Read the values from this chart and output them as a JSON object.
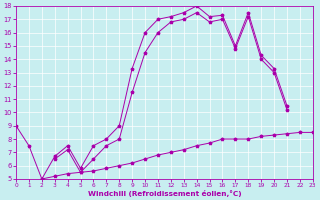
{
  "xlabel": "Windchill (Refroidissement éolien,°C)",
  "bg_color": "#c8eef0",
  "line_color": "#aa00aa",
  "xlim": [
    0,
    23
  ],
  "ylim": [
    5,
    18
  ],
  "xticks": [
    0,
    1,
    2,
    3,
    4,
    5,
    6,
    7,
    8,
    9,
    10,
    11,
    12,
    13,
    14,
    15,
    16,
    17,
    18,
    19,
    20,
    21,
    22,
    23
  ],
  "yticks": [
    5,
    6,
    7,
    8,
    9,
    10,
    11,
    12,
    13,
    14,
    15,
    16,
    17,
    18
  ],
  "line1_x": [
    0,
    1,
    2,
    3,
    4,
    5,
    6,
    7,
    8,
    9,
    10,
    11,
    12,
    13,
    14,
    15,
    16,
    17,
    18,
    19,
    20,
    21
  ],
  "line1_y": [
    9.0,
    7.5,
    5.0,
    6.7,
    7.5,
    5.8,
    7.5,
    8.0,
    9.0,
    13.3,
    16.0,
    17.0,
    17.2,
    17.5,
    18.0,
    17.2,
    17.3,
    15.0,
    17.5,
    14.3,
    13.3,
    10.5
  ],
  "line2_x": [
    3,
    4,
    5,
    6,
    7,
    8,
    9,
    10,
    11,
    12,
    13,
    14,
    15,
    16,
    17,
    18,
    19,
    20,
    21
  ],
  "line2_y": [
    6.5,
    7.2,
    5.5,
    6.5,
    7.5,
    8.0,
    11.5,
    14.5,
    16.0,
    16.8,
    17.0,
    17.5,
    16.8,
    17.0,
    14.8,
    17.2,
    14.0,
    13.0,
    10.2
  ],
  "line3_x": [
    2,
    3,
    4,
    5,
    6,
    7,
    8,
    9,
    10,
    11,
    12,
    13,
    14,
    15,
    16,
    17,
    18,
    19,
    20,
    21,
    22,
    23
  ],
  "line3_y": [
    5.0,
    5.2,
    5.4,
    5.5,
    5.6,
    5.8,
    6.0,
    6.2,
    6.5,
    6.8,
    7.0,
    7.2,
    7.5,
    7.7,
    8.0,
    8.0,
    8.0,
    8.2,
    8.3,
    8.4,
    8.5,
    8.5
  ]
}
